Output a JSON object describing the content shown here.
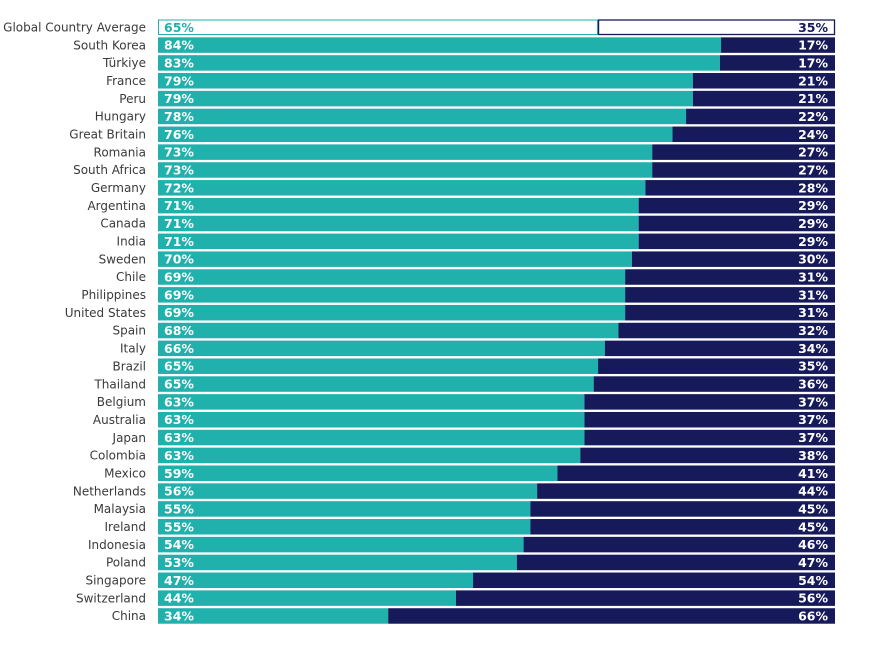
{
  "chart_data": {
    "type": "bar",
    "orientation": "horizontal",
    "stacked": true,
    "percent_stacked": true,
    "categories": [
      "Global Country Average",
      "South Korea",
      "Türkiye",
      "France",
      "Peru",
      "Hungary",
      "Great Britain",
      "Romania",
      "South Africa",
      "Germany",
      "Argentina",
      "Canada",
      "India",
      "Sweden",
      "Chile",
      "Philippines",
      "United States",
      "Spain",
      "Italy",
      "Brazil",
      "Thailand",
      "Belgium",
      "Australia",
      "Japan",
      "Colombia",
      "Mexico",
      "Netherlands",
      "Malaysia",
      "Ireland",
      "Indonesia",
      "Poland",
      "Singapore",
      "Switzerland",
      "China"
    ],
    "series": [
      {
        "name": "left",
        "color": "#20b1ad",
        "values": [
          65,
          84,
          83,
          79,
          79,
          78,
          76,
          73,
          73,
          72,
          71,
          71,
          71,
          70,
          69,
          69,
          69,
          68,
          66,
          65,
          65,
          63,
          63,
          63,
          63,
          59,
          56,
          55,
          55,
          54,
          53,
          47,
          44,
          34
        ],
        "labels": [
          "65%",
          "84%",
          "83%",
          "79%",
          "79%",
          "78%",
          "76%",
          "73%",
          "73%",
          "72%",
          "71%",
          "71%",
          "71%",
          "70%",
          "69%",
          "69%",
          "69%",
          "68%",
          "66%",
          "65%",
          "65%",
          "63%",
          "63%",
          "63%",
          "63%",
          "59%",
          "56%",
          "55%",
          "55%",
          "54%",
          "53%",
          "47%",
          "44%",
          "34%"
        ]
      },
      {
        "name": "right",
        "color": "#16195a",
        "values": [
          35,
          17,
          17,
          21,
          21,
          22,
          24,
          27,
          27,
          28,
          29,
          29,
          29,
          30,
          31,
          31,
          31,
          32,
          34,
          35,
          36,
          37,
          37,
          37,
          38,
          41,
          44,
          45,
          45,
          46,
          47,
          54,
          56,
          66
        ],
        "labels": [
          "35%",
          "17%",
          "17%",
          "21%",
          "21%",
          "22%",
          "24%",
          "27%",
          "27%",
          "28%",
          "29%",
          "29%",
          "29%",
          "30%",
          "31%",
          "31%",
          "31%",
          "32%",
          "34%",
          "35%",
          "36%",
          "37%",
          "37%",
          "37%",
          "38%",
          "41%",
          "44%",
          "45%",
          "45%",
          "46%",
          "47%",
          "54%",
          "56%",
          "66%"
        ]
      }
    ],
    "highlight": {
      "category": "Global Country Average",
      "style": "outline"
    },
    "title": "",
    "xlabel": "",
    "ylabel": "",
    "xlim": [
      0,
      100
    ],
    "grid": false,
    "legend": "none"
  }
}
